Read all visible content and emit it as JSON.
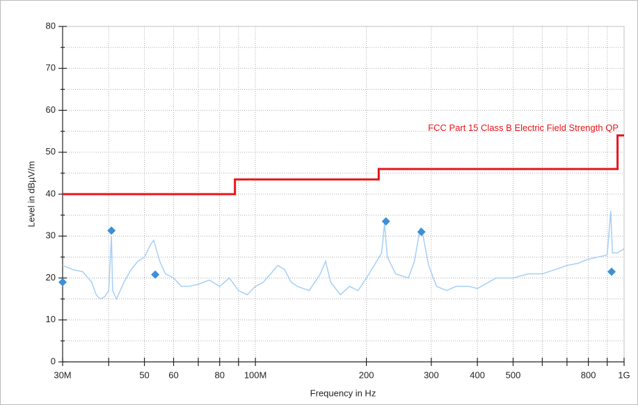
{
  "chart_data": {
    "type": "line",
    "xlabel": "Frequency in Hz",
    "ylabel": "Level in dBµV/m",
    "xscale": "log",
    "grid": true,
    "xlim": [
      30000000,
      1000000000
    ],
    "ylim": [
      0,
      80
    ],
    "xticks": [
      {
        "value": 30000000,
        "label": "30M"
      },
      {
        "value": 50000000,
        "label": "50"
      },
      {
        "value": 60000000,
        "label": "60"
      },
      {
        "value": 80000000,
        "label": "80"
      },
      {
        "value": 100000000,
        "label": "100M"
      },
      {
        "value": 200000000,
        "label": "200"
      },
      {
        "value": 300000000,
        "label": "300"
      },
      {
        "value": 400000000,
        "label": "400"
      },
      {
        "value": 500000000,
        "label": "500"
      },
      {
        "value": 800000000,
        "label": "800"
      },
      {
        "value": 1000000000,
        "label": "1G"
      }
    ],
    "xminorticks": [
      40000000,
      70000000,
      90000000,
      600000000,
      700000000,
      900000000
    ],
    "yticks": [
      0,
      10,
      20,
      30,
      40,
      50,
      60,
      70,
      80
    ],
    "yminorticks": [
      5,
      15,
      25,
      35,
      45,
      55,
      65,
      75
    ],
    "series": [
      {
        "color": "#a6cff5",
        "style": "line",
        "x": [
          30000000,
          32000000,
          34000000,
          36000000,
          37000000,
          38000000,
          39000000,
          40000000,
          40700000,
          41000000,
          42000000,
          44000000,
          46000000,
          48000000,
          50000000,
          52000000,
          53000000,
          55000000,
          57000000,
          60000000,
          63000000,
          66000000,
          70000000,
          75000000,
          80000000,
          85000000,
          90000000,
          95000000,
          100000000,
          105000000,
          110000000,
          115000000,
          120000000,
          125000000,
          130000000,
          140000000,
          150000000,
          155000000,
          160000000,
          170000000,
          180000000,
          190000000,
          200000000,
          210000000,
          220000000,
          224000000,
          228000000,
          240000000,
          260000000,
          270000000,
          280000000,
          285000000,
          295000000,
          310000000,
          330000000,
          350000000,
          380000000,
          400000000,
          450000000,
          500000000,
          550000000,
          600000000,
          650000000,
          700000000,
          750000000,
          800000000,
          850000000,
          900000000,
          920000000,
          930000000,
          960000000,
          1000000000
        ],
        "values": [
          23,
          22,
          21.5,
          19,
          16,
          15,
          15.5,
          17,
          30,
          17,
          15,
          19,
          22,
          24,
          25,
          28,
          29,
          24,
          21,
          20,
          18,
          18,
          18.5,
          19.5,
          18,
          20,
          17,
          16,
          18,
          19,
          21,
          23,
          22,
          19,
          18,
          17,
          21,
          24,
          19,
          16,
          18,
          17,
          20,
          23,
          26,
          33,
          25,
          21,
          20,
          24,
          32,
          30,
          23,
          18,
          17,
          18,
          18,
          17.5,
          20,
          20,
          21,
          21,
          22,
          23,
          23.5,
          24.5,
          25,
          25.5,
          36,
          26,
          26,
          27
        ]
      },
      {
        "name": "FCC Part 15 Class B Electric Field Strength QP",
        "color": "#e8141a",
        "style": "line",
        "x": [
          30000000,
          88000000,
          88000000,
          216000000,
          216000000,
          960000000,
          960000000,
          1000000000
        ],
        "values": [
          40,
          40,
          43.5,
          43.5,
          46,
          46,
          54,
          54
        ]
      },
      {
        "color": "#3d8fd6",
        "style": "diamond",
        "x": [
          30000000,
          40700000,
          53500000,
          226000000,
          282000000,
          925000000
        ],
        "values": [
          19,
          31.3,
          20.8,
          33.5,
          31,
          21.5
        ]
      }
    ]
  }
}
